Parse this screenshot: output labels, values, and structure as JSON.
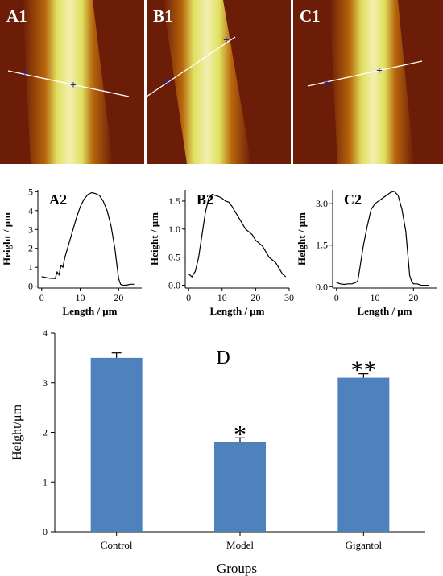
{
  "afm_images": [
    {
      "label": "A1"
    },
    {
      "label": "B1"
    },
    {
      "label": "C1"
    }
  ],
  "colors": {
    "afm_dark": "#6b1d08",
    "afm_mid": "#b8650c",
    "afm_bright": "#e0e060",
    "afm_peak": "#f3efb0",
    "bar_fill": "#4f81bd",
    "profile_line": "#000000"
  },
  "chart_data": [
    {
      "type": "line",
      "panel": "A2",
      "xlabel": "Length / μm",
      "ylabel": "Height / μm",
      "xlim": [
        -1,
        26
      ],
      "ylim": [
        -0.1,
        5.1
      ],
      "xticks": [
        0,
        10,
        20
      ],
      "yticks": [
        0,
        1,
        2,
        3,
        4,
        5
      ],
      "x": [
        0,
        2,
        3.5,
        4,
        4.5,
        5,
        5.5,
        6,
        7,
        8,
        9,
        10,
        11,
        12,
        13,
        14,
        15,
        16,
        17,
        18,
        18.5,
        19,
        19.5,
        20,
        20.5,
        21,
        22,
        23,
        24
      ],
      "y": [
        0.5,
        0.42,
        0.4,
        0.75,
        0.6,
        1.1,
        1.0,
        1.5,
        2.2,
        2.9,
        3.6,
        4.2,
        4.6,
        4.85,
        4.95,
        4.9,
        4.8,
        4.5,
        4.0,
        3.2,
        2.6,
        2.0,
        1.2,
        0.4,
        0.1,
        0.05,
        0.05,
        0.1,
        0.1
      ]
    },
    {
      "type": "line",
      "panel": "B2",
      "xlabel": "Length / μm",
      "ylabel": "Height / μm",
      "xlim": [
        -1,
        30
      ],
      "ylim": [
        -0.05,
        1.7
      ],
      "xticks": [
        0,
        10,
        20,
        30
      ],
      "yticks": [
        0,
        0.5,
        1.0,
        1.5
      ],
      "x": [
        0,
        1,
        2,
        3,
        4,
        5,
        6,
        7,
        8,
        9,
        10,
        11,
        12,
        13,
        14,
        15,
        16,
        17,
        18,
        19,
        20,
        21,
        22,
        23,
        24,
        25,
        26,
        27,
        28,
        29
      ],
      "y": [
        0.2,
        0.15,
        0.25,
        0.5,
        0.9,
        1.3,
        1.55,
        1.62,
        1.6,
        1.58,
        1.55,
        1.5,
        1.48,
        1.4,
        1.3,
        1.2,
        1.1,
        1.0,
        0.95,
        0.9,
        0.8,
        0.75,
        0.7,
        0.6,
        0.5,
        0.45,
        0.4,
        0.3,
        0.2,
        0.15
      ]
    },
    {
      "type": "line",
      "panel": "C2",
      "xlabel": "Length / μm",
      "ylabel": "Height / μm",
      "xlim": [
        -1,
        26
      ],
      "ylim": [
        -0.05,
        3.5
      ],
      "xticks": [
        0,
        10,
        20
      ],
      "yticks": [
        0,
        1.5,
        3.0
      ],
      "x": [
        0,
        1,
        2,
        3,
        4,
        5,
        5.5,
        6,
        7,
        8,
        9,
        10,
        11,
        12,
        13,
        14,
        15,
        16,
        17,
        18,
        18.5,
        19,
        19.5,
        20,
        21,
        22,
        23,
        24
      ],
      "y": [
        0.15,
        0.1,
        0.08,
        0.1,
        0.1,
        0.15,
        0.2,
        0.6,
        1.5,
        2.2,
        2.8,
        3.0,
        3.1,
        3.2,
        3.3,
        3.4,
        3.45,
        3.3,
        2.8,
        2.0,
        1.2,
        0.4,
        0.2,
        0.1,
        0.1,
        0.05,
        0.05,
        0.05
      ]
    },
    {
      "type": "bar",
      "panel": "D",
      "categories": [
        "Control",
        "Model",
        "Gigantol"
      ],
      "values": [
        3.5,
        1.8,
        3.1
      ],
      "errors": [
        0.1,
        0.09,
        0.08
      ],
      "annotations": [
        "",
        "*",
        "**"
      ],
      "xlabel": "Groups",
      "ylabel": "Height/μm",
      "ylim": [
        0,
        4
      ],
      "yticks": [
        0,
        1,
        2,
        3,
        4
      ]
    }
  ]
}
